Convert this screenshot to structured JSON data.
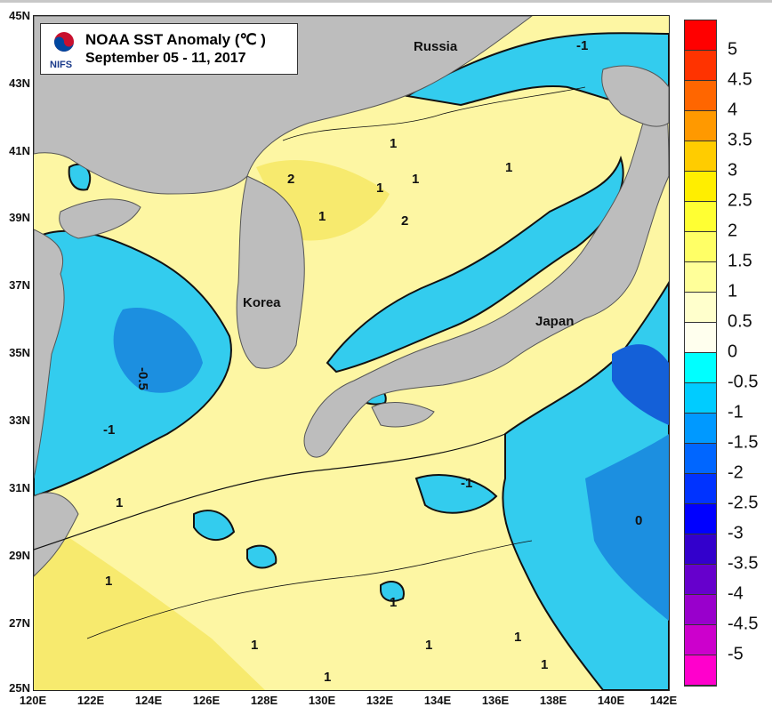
{
  "title": {
    "line1": "NOAA SST Anomaly (℃ )",
    "line2": "September 05 - 11, 2017",
    "logo_text": "NIFS"
  },
  "axes": {
    "lat_labels": [
      "45N",
      "43N",
      "41N",
      "39N",
      "37N",
      "35N",
      "33N",
      "31N",
      "29N",
      "27N",
      "25N"
    ],
    "lon_labels": [
      "120E",
      "122E",
      "124E",
      "126E",
      "128E",
      "130E",
      "132E",
      "134E",
      "136E",
      "138E",
      "140E",
      "142E"
    ]
  },
  "places": {
    "russia": "Russia",
    "korea": "Korea",
    "japan": "Japan"
  },
  "contour_labels": [
    "-1",
    "1",
    "2",
    "1",
    "1",
    "1",
    "2",
    "1",
    "-0.5",
    "-1",
    "1",
    "1",
    "0",
    "1",
    "1",
    "1",
    "1",
    "1",
    "1",
    "-1"
  ],
  "colorbar": {
    "labels": [
      "5",
      "4.5",
      "4",
      "3.5",
      "3",
      "2.5",
      "2",
      "1.5",
      "1",
      "0.5",
      "0",
      "-0.5",
      "-1",
      "-1.5",
      "-2",
      "-2.5",
      "-3",
      "-3.5",
      "-4",
      "-4.5",
      "-5"
    ],
    "colors": [
      "#ff0000",
      "#ff3300",
      "#ff6600",
      "#ff9900",
      "#ffcc00",
      "#ffee00",
      "#ffff33",
      "#ffff66",
      "#ffff99",
      "#ffffcc",
      "#ffffee",
      "#00ffff",
      "#00ccff",
      "#0099ff",
      "#0066ff",
      "#0033ff",
      "#0000ff",
      "#3300cc",
      "#6600cc",
      "#9900cc",
      "#cc00cc",
      "#ff00cc"
    ]
  },
  "map_colors": {
    "land": "#bdbdbd",
    "warm": "#fdf6a3",
    "warm2": "#f7ea6e",
    "cool": "#33ccee",
    "cool2": "#1c8fe0",
    "cool3": "#1460d8"
  }
}
